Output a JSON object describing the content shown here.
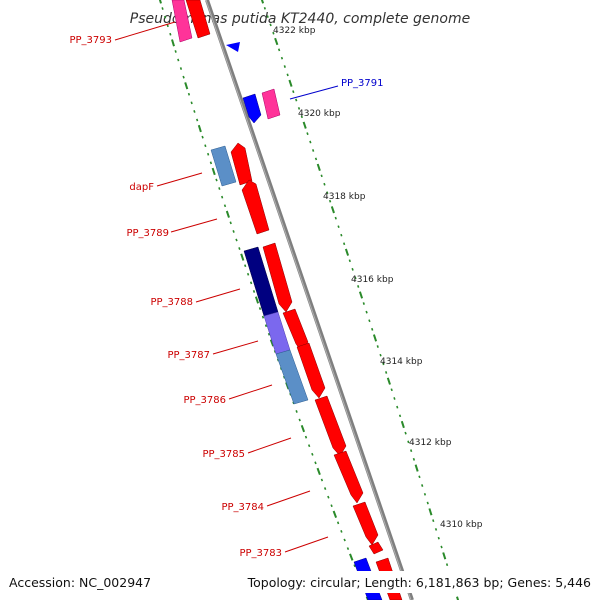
{
  "title": "Pseudomonas putida KT2440, complete genome",
  "footer": {
    "accession": "Accession: NC_002947",
    "summary": "Topology: circular; Length: 6,181,863 bp; Genes: 5,446"
  },
  "colors": {
    "backbone": "#808080",
    "tick": "#2a8a2a",
    "label_red": "#cc0000",
    "label_blue": "#0000cc"
  },
  "scale_labels": [
    "4322 kbp",
    "4320 kbp",
    "4318 kbp",
    "4316 kbp",
    "4314 kbp",
    "4312 kbp",
    "4310 kbp"
  ],
  "gene_labels": [
    "PP_3793",
    "PP_3791",
    "dapF",
    "PP_3789",
    "PP_3788",
    "PP_3787",
    "PP_3786",
    "PP_3785",
    "PP_3784",
    "PP_3783"
  ]
}
